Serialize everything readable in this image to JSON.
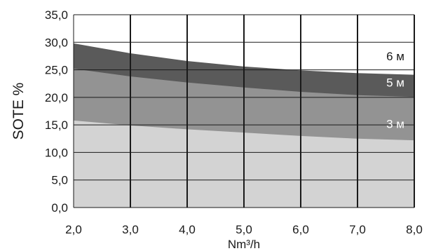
{
  "chart_data": {
    "type": "area",
    "title": "",
    "xlabel": "Nm³/h",
    "ylabel": "SOTE %",
    "xlim": [
      2.0,
      8.0
    ],
    "ylim": [
      0.0,
      35.0
    ],
    "grid": true,
    "x_ticks": [
      "2,0",
      "3,0",
      "4,0",
      "5,0",
      "6,0",
      "7,0",
      "8,0"
    ],
    "y_ticks": [
      "0,0",
      "5,0",
      "10,0",
      "15,0",
      "20,0",
      "25,0",
      "30,0",
      "35,0"
    ],
    "x": [
      2.0,
      3.0,
      4.0,
      5.0,
      6.0,
      7.0,
      8.0
    ],
    "series": [
      {
        "name": "3 м",
        "values": [
          15.8,
          14.9,
          14.2,
          13.6,
          13.0,
          12.5,
          12.2
        ],
        "color": "#d3d3d3",
        "label_color": "#ffffff"
      },
      {
        "name": "5 м",
        "values": [
          25.2,
          23.8,
          22.7,
          21.8,
          21.0,
          20.4,
          20.1
        ],
        "color": "#939393",
        "label_color": "#ffffff"
      },
      {
        "name": "6 м",
        "values": [
          29.8,
          28.0,
          26.6,
          25.6,
          24.9,
          24.4,
          24.1
        ],
        "color": "#5a5a5a",
        "label_color": "#1a1a1a"
      }
    ]
  }
}
